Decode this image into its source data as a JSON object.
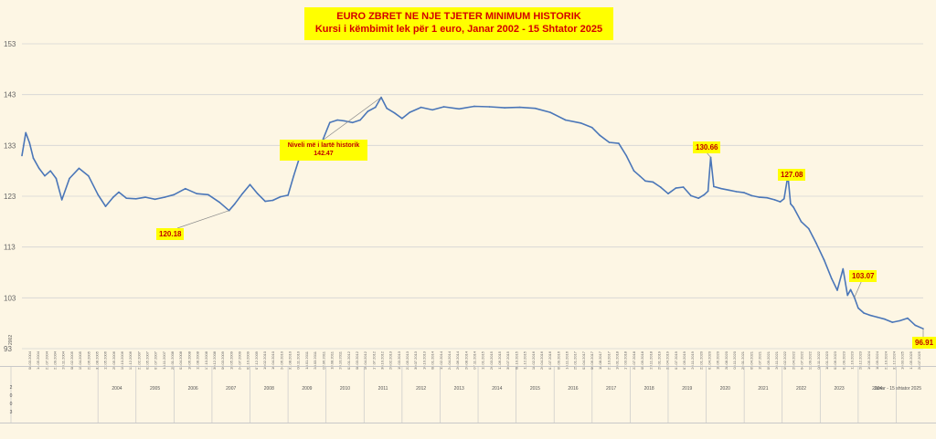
{
  "chart_data": {
    "type": "line",
    "title": "EURO ZBRET NE NJE TJETER MINIMUM HISTORIK",
    "subtitle": "Kursi i këmbimit lek për 1 euro, Janar 2002 - 15 Shtator 2025",
    "xlabel": "",
    "ylabel": "",
    "ylim": [
      93,
      153
    ],
    "y_ticks": [
      "93",
      "103",
      "113",
      "123",
      "133",
      "143",
      "153"
    ],
    "grid": "horizontal",
    "series_color": "#4a76b8",
    "year_labels": [
      "2004",
      "2005",
      "2006",
      "2007",
      "2008",
      "2009",
      "2010",
      "2011",
      "2012",
      "2013",
      "2014",
      "2015",
      "2016",
      "2017",
      "2018",
      "2019",
      "2020",
      "2021",
      "2022",
      "2023",
      "2024",
      "Janar - 15 shtator 2025"
    ],
    "leading_year_label": "2002",
    "leading_year_digits": [
      "2",
      "0",
      "0",
      "3"
    ],
    "date_labels": [
      "08.03.2004",
      "14.05.2004",
      "21.07.2004",
      "21.09.2004",
      "26.11.2004",
      "08.02.2005",
      "15.04.2005",
      "22.06.2005",
      "31.08.2005",
      "12.05.2006",
      "29.05.2006",
      "10.10.2006",
      "13.12.2006",
      "21.02.2007",
      "02.05.2007",
      "07.07.2007",
      "14.11.2007",
      "25.01.2008",
      "03.04.2008",
      "10.06.2008",
      "12.08.2008",
      "17.10.2008",
      "30.12.2008",
      "06.03.2009",
      "18.05.2009",
      "24.07.2009",
      "02.10.2009",
      "07.12.2009",
      "10.02.2010",
      "16.04.2010",
      "24.06.2010",
      "31.08.2010",
      "08.11.2010",
      "18.01.2011",
      "28.03.2011",
      "02.06.2011",
      "18.08.2011",
      "26.10.2011",
      "02.01.2012",
      "08.03.2012",
      "16.04.2012",
      "17.07.2012",
      "30.10.2012",
      "20.02.2013",
      "15.03.2013",
      "23.05.2013",
      "30.07.2013",
      "16.10.2013",
      "08.01.2014",
      "13.02.2014",
      "24.04.2014",
      "26.06.2014",
      "26.08.2014",
      "07.11.2014",
      "13.01.2015",
      "26.03.2015",
      "11.06.2015",
      "30.07.2015",
      "08.10.2015",
      "11.12.2015",
      "18.02.2016",
      "26.04.2016",
      "01.07.2016",
      "09.09.2016",
      "14.11.2016",
      "25.01.2017",
      "03.04.2017",
      "06.06.2017",
      "18.08.2017",
      "27.10.2017",
      "10.01.2018",
      "17.03.2018",
      "23.07.2018",
      "05.09.2018",
      "23.11.2018",
      "29.01.2019",
      "23.04.2019",
      "01.07.2019",
      "07.09.2019",
      "26.11.2019",
      "22.01.2020",
      "01.04.2020",
      "18.06.2020",
      "28.08.2020",
      "03.11.2020",
      "29.01.2021",
      "05.04.2021",
      "19.07.2021",
      "09.09.2021",
      "26.11.2021",
      "09.02.2022",
      "29.04.2022",
      "04.07.2022",
      "12.09.2022",
      "08.11.2022",
      "18.01.2023",
      "02.06.2023",
      "01.09.2023",
      "11.10.2023",
      "28.12.2023",
      "16.05.2024",
      "18.09.2024",
      "21.10.2024",
      "31.12.2024",
      "10.03.2025",
      "11.05.2025",
      "28.07.2025"
    ],
    "x_range": [
      2002.0,
      2025.71
    ],
    "x": [
      2002.0,
      2002.1,
      2002.2,
      2002.3,
      2002.45,
      2002.6,
      2002.75,
      2002.9,
      2003.05,
      2003.25,
      2003.5,
      2003.75,
      2004.0,
      2004.2,
      2004.4,
      2004.55,
      2004.75,
      2005.0,
      2005.25,
      2005.5,
      2005.75,
      2006.0,
      2006.3,
      2006.6,
      2006.9,
      2007.2,
      2007.45,
      2007.6,
      2007.8,
      2008.0,
      2008.2,
      2008.4,
      2008.6,
      2008.8,
      2009.0,
      2009.15,
      2009.3,
      2009.5,
      2009.7,
      2009.9,
      2010.1,
      2010.3,
      2010.5,
      2010.7,
      2010.9,
      2011.1,
      2011.3,
      2011.45,
      2011.6,
      2011.8,
      2012.0,
      2012.2,
      2012.5,
      2012.8,
      2013.1,
      2013.5,
      2013.9,
      2014.3,
      2014.7,
      2015.1,
      2015.5,
      2015.9,
      2016.3,
      2016.7,
      2017.0,
      2017.2,
      2017.45,
      2017.7,
      2017.9,
      2018.1,
      2018.25,
      2018.4,
      2018.6,
      2018.8,
      2019.0,
      2019.2,
      2019.4,
      2019.6,
      2019.8,
      2019.95,
      2020.05,
      2020.12,
      2020.2,
      2020.4,
      2020.6,
      2020.8,
      2021.0,
      2021.2,
      2021.4,
      2021.6,
      2021.8,
      2021.95,
      2022.05,
      2022.15,
      2022.22,
      2022.3,
      2022.5,
      2022.7,
      2022.9,
      2023.1,
      2023.3,
      2023.45,
      2023.6,
      2023.72,
      2023.8,
      2023.9,
      2024.0,
      2024.15,
      2024.3,
      2024.5,
      2024.7,
      2024.9,
      2025.1,
      2025.3,
      2025.5,
      2025.71
    ],
    "series": [
      {
        "values": [
          131.0,
          135.5,
          133.5,
          130.5,
          128.5,
          127.0,
          128.0,
          126.5,
          122.3,
          126.5,
          128.5,
          127.0,
          123.3,
          121.0,
          122.8,
          123.8,
          122.6,
          122.5,
          122.8,
          122.4,
          122.8,
          123.3,
          124.5,
          123.5,
          123.3,
          121.8,
          120.18,
          121.5,
          123.5,
          125.3,
          123.5,
          122.0,
          122.2,
          122.9,
          123.2,
          127.0,
          130.6,
          132.5,
          133.4,
          133.8,
          137.5,
          138.0,
          137.8,
          137.5,
          138.0,
          139.7,
          140.5,
          142.47,
          140.3,
          139.4,
          138.3,
          139.5,
          140.5,
          140.0,
          140.6,
          140.2,
          140.7,
          140.6,
          140.4,
          140.5,
          140.3,
          139.5,
          138.0,
          137.4,
          136.5,
          135.0,
          133.6,
          133.4,
          131.0,
          128.0,
          127.0,
          126.0,
          125.8,
          124.8,
          123.5,
          124.6,
          124.8,
          123.1,
          122.6,
          123.3,
          124.0,
          130.66,
          124.9,
          124.5,
          124.2,
          123.9,
          123.7,
          123.1,
          122.8,
          122.7,
          122.3,
          121.9,
          122.5,
          127.08,
          121.5,
          120.8,
          118.0,
          116.6,
          113.7,
          110.5,
          106.8,
          104.5,
          108.7,
          103.5,
          104.6,
          103.07,
          101.0,
          100.0,
          99.6,
          99.2,
          98.8,
          98.2,
          98.5,
          99.0,
          97.6,
          96.91
        ]
      }
    ],
    "callouts": [
      {
        "label": "120.18",
        "x": 2007.45,
        "y": 120.18
      },
      {
        "label": "130.66",
        "x": 2020.12,
        "y": 130.66
      },
      {
        "label": "127.08",
        "x": 2022.15,
        "y": 127.08
      },
      {
        "label": "103.07",
        "x": 2023.9,
        "y": 103.07
      },
      {
        "label": "96.91",
        "x": 2025.71,
        "y": 96.91
      }
    ],
    "annotation": {
      "line1": "Niveli më i lartë historik",
      "line2": "142.47",
      "x": 2011.45,
      "y": 142.47
    }
  }
}
